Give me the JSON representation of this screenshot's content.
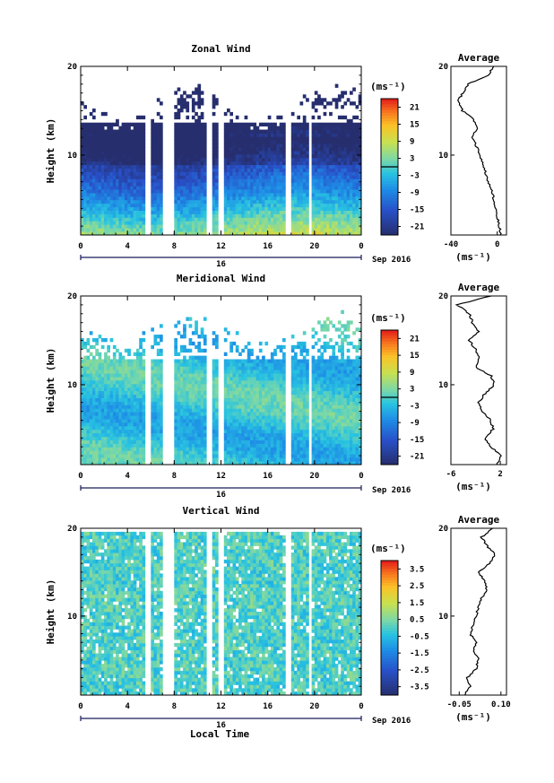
{
  "figure": {
    "xlabel": "Local Time",
    "date_label": "Sep 2016",
    "day_label": "16",
    "x_ticks": [
      "0",
      "4",
      "8",
      "12",
      "16",
      "20",
      "0"
    ],
    "y_ticks": [
      "20",
      "10"
    ],
    "ylabel": "Height (km)",
    "unit_label": "(ms⁻¹)",
    "profile_title": "Average",
    "profile_xunit": "(ms⁻¹)"
  },
  "chart_data": [
    {
      "type": "heatmap",
      "title": "Zonal Wind",
      "xlabel": "",
      "ylabel": "Height (km)",
      "xlim_hours": [
        0,
        24
      ],
      "ylim_km": [
        1,
        20
      ],
      "colorbar": {
        "ticks": [
          21,
          15,
          9,
          3,
          -3,
          -9,
          -15,
          -21
        ],
        "range": [
          -24,
          24
        ],
        "zero_line": true
      },
      "profile": {
        "title": "Average",
        "xlim": [
          -40,
          8
        ],
        "xticks": [
          "-40",
          "0"
        ],
        "z_km": [
          1,
          2,
          3,
          4,
          5,
          6,
          7,
          8,
          9,
          10,
          11,
          12,
          13,
          14,
          15,
          16,
          17,
          18,
          19,
          20
        ],
        "mean": [
          3,
          2,
          0,
          -1,
          -3,
          -5,
          -8,
          -10,
          -12,
          -15,
          -18,
          -22,
          -17,
          -20,
          -30,
          -34,
          -30,
          -25,
          -8,
          -3
        ]
      }
    },
    {
      "type": "heatmap",
      "title": "Meridional Wind",
      "xlabel": "",
      "ylabel": "Height (km)",
      "xlim_hours": [
        0,
        24
      ],
      "ylim_km": [
        1,
        20
      ],
      "colorbar": {
        "ticks": [
          21,
          15,
          9,
          3,
          -3,
          -9,
          -15,
          -21
        ],
        "range": [
          -24,
          24
        ],
        "zero_line": true
      },
      "profile": {
        "title": "Average",
        "xlim": [
          -6,
          3
        ],
        "xticks": [
          "-6",
          "2"
        ],
        "z_km": [
          1,
          2,
          3,
          4,
          5,
          6,
          7,
          8,
          9,
          10,
          11,
          12,
          13,
          14,
          15,
          16,
          17,
          18,
          19,
          20
        ],
        "mean": [
          1.5,
          2.0,
          0.5,
          -0.5,
          0.8,
          0.5,
          -1.0,
          -1.5,
          -0.5,
          1.0,
          0.5,
          -2.0,
          -1.5,
          -2.0,
          -3.0,
          -1.5,
          -2.5,
          -3.0,
          -5.0,
          0.5
        ]
      }
    },
    {
      "type": "heatmap",
      "title": "Vertical Wind",
      "xlabel": "Local Time",
      "ylabel": "Height (km)",
      "xlim_hours": [
        0,
        24
      ],
      "ylim_km": [
        1,
        20
      ],
      "colorbar": {
        "ticks": [
          3.5,
          2.5,
          1.5,
          0.5,
          -0.5,
          -1.5,
          -2.5,
          -3.5
        ],
        "range": [
          -4,
          4
        ],
        "zero_line": false
      },
      "profile": {
        "title": "Average",
        "xlim": [
          -0.08,
          0.12
        ],
        "xticks": [
          "-0.05",
          "0.10"
        ],
        "z_km": [
          1,
          2,
          3,
          4,
          5,
          6,
          7,
          8,
          9,
          10,
          11,
          12,
          13,
          14,
          15,
          16,
          17,
          18,
          19,
          20
        ],
        "mean": [
          -0.03,
          -0.01,
          -0.02,
          0.01,
          0.02,
          0.0,
          0.01,
          -0.01,
          0.0,
          0.01,
          0.02,
          0.03,
          0.05,
          0.04,
          0.02,
          0.06,
          0.08,
          0.05,
          0.03,
          0.07
        ]
      }
    }
  ]
}
